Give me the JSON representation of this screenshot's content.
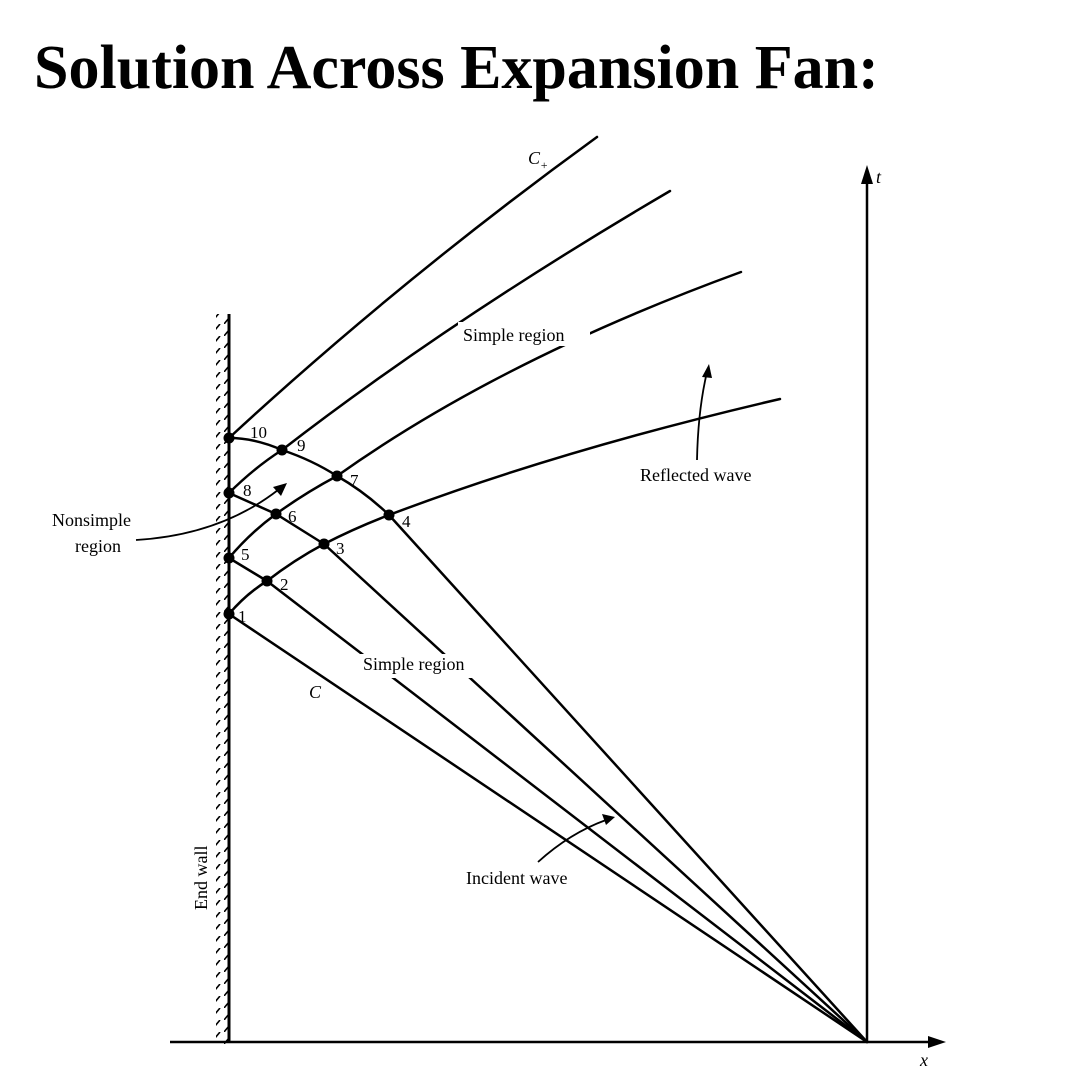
{
  "title": "Solution Across Expansion Fan:",
  "axes": {
    "t_label": "t",
    "x_label": "x"
  },
  "wall_label": "End wall",
  "labels": {
    "c_plus": "C",
    "c_plus_sub": "+",
    "c_minus": "C",
    "simple_region_top": "Simple region",
    "simple_region_bottom": "Simple region",
    "reflected_wave": "Reflected wave",
    "incident_wave": "Incident wave",
    "nonsimple_line1": "Nonsimple",
    "nonsimple_line2": "region"
  },
  "nodes": [
    "1",
    "2",
    "3",
    "4",
    "5",
    "6",
    "7",
    "8",
    "9",
    "10"
  ]
}
